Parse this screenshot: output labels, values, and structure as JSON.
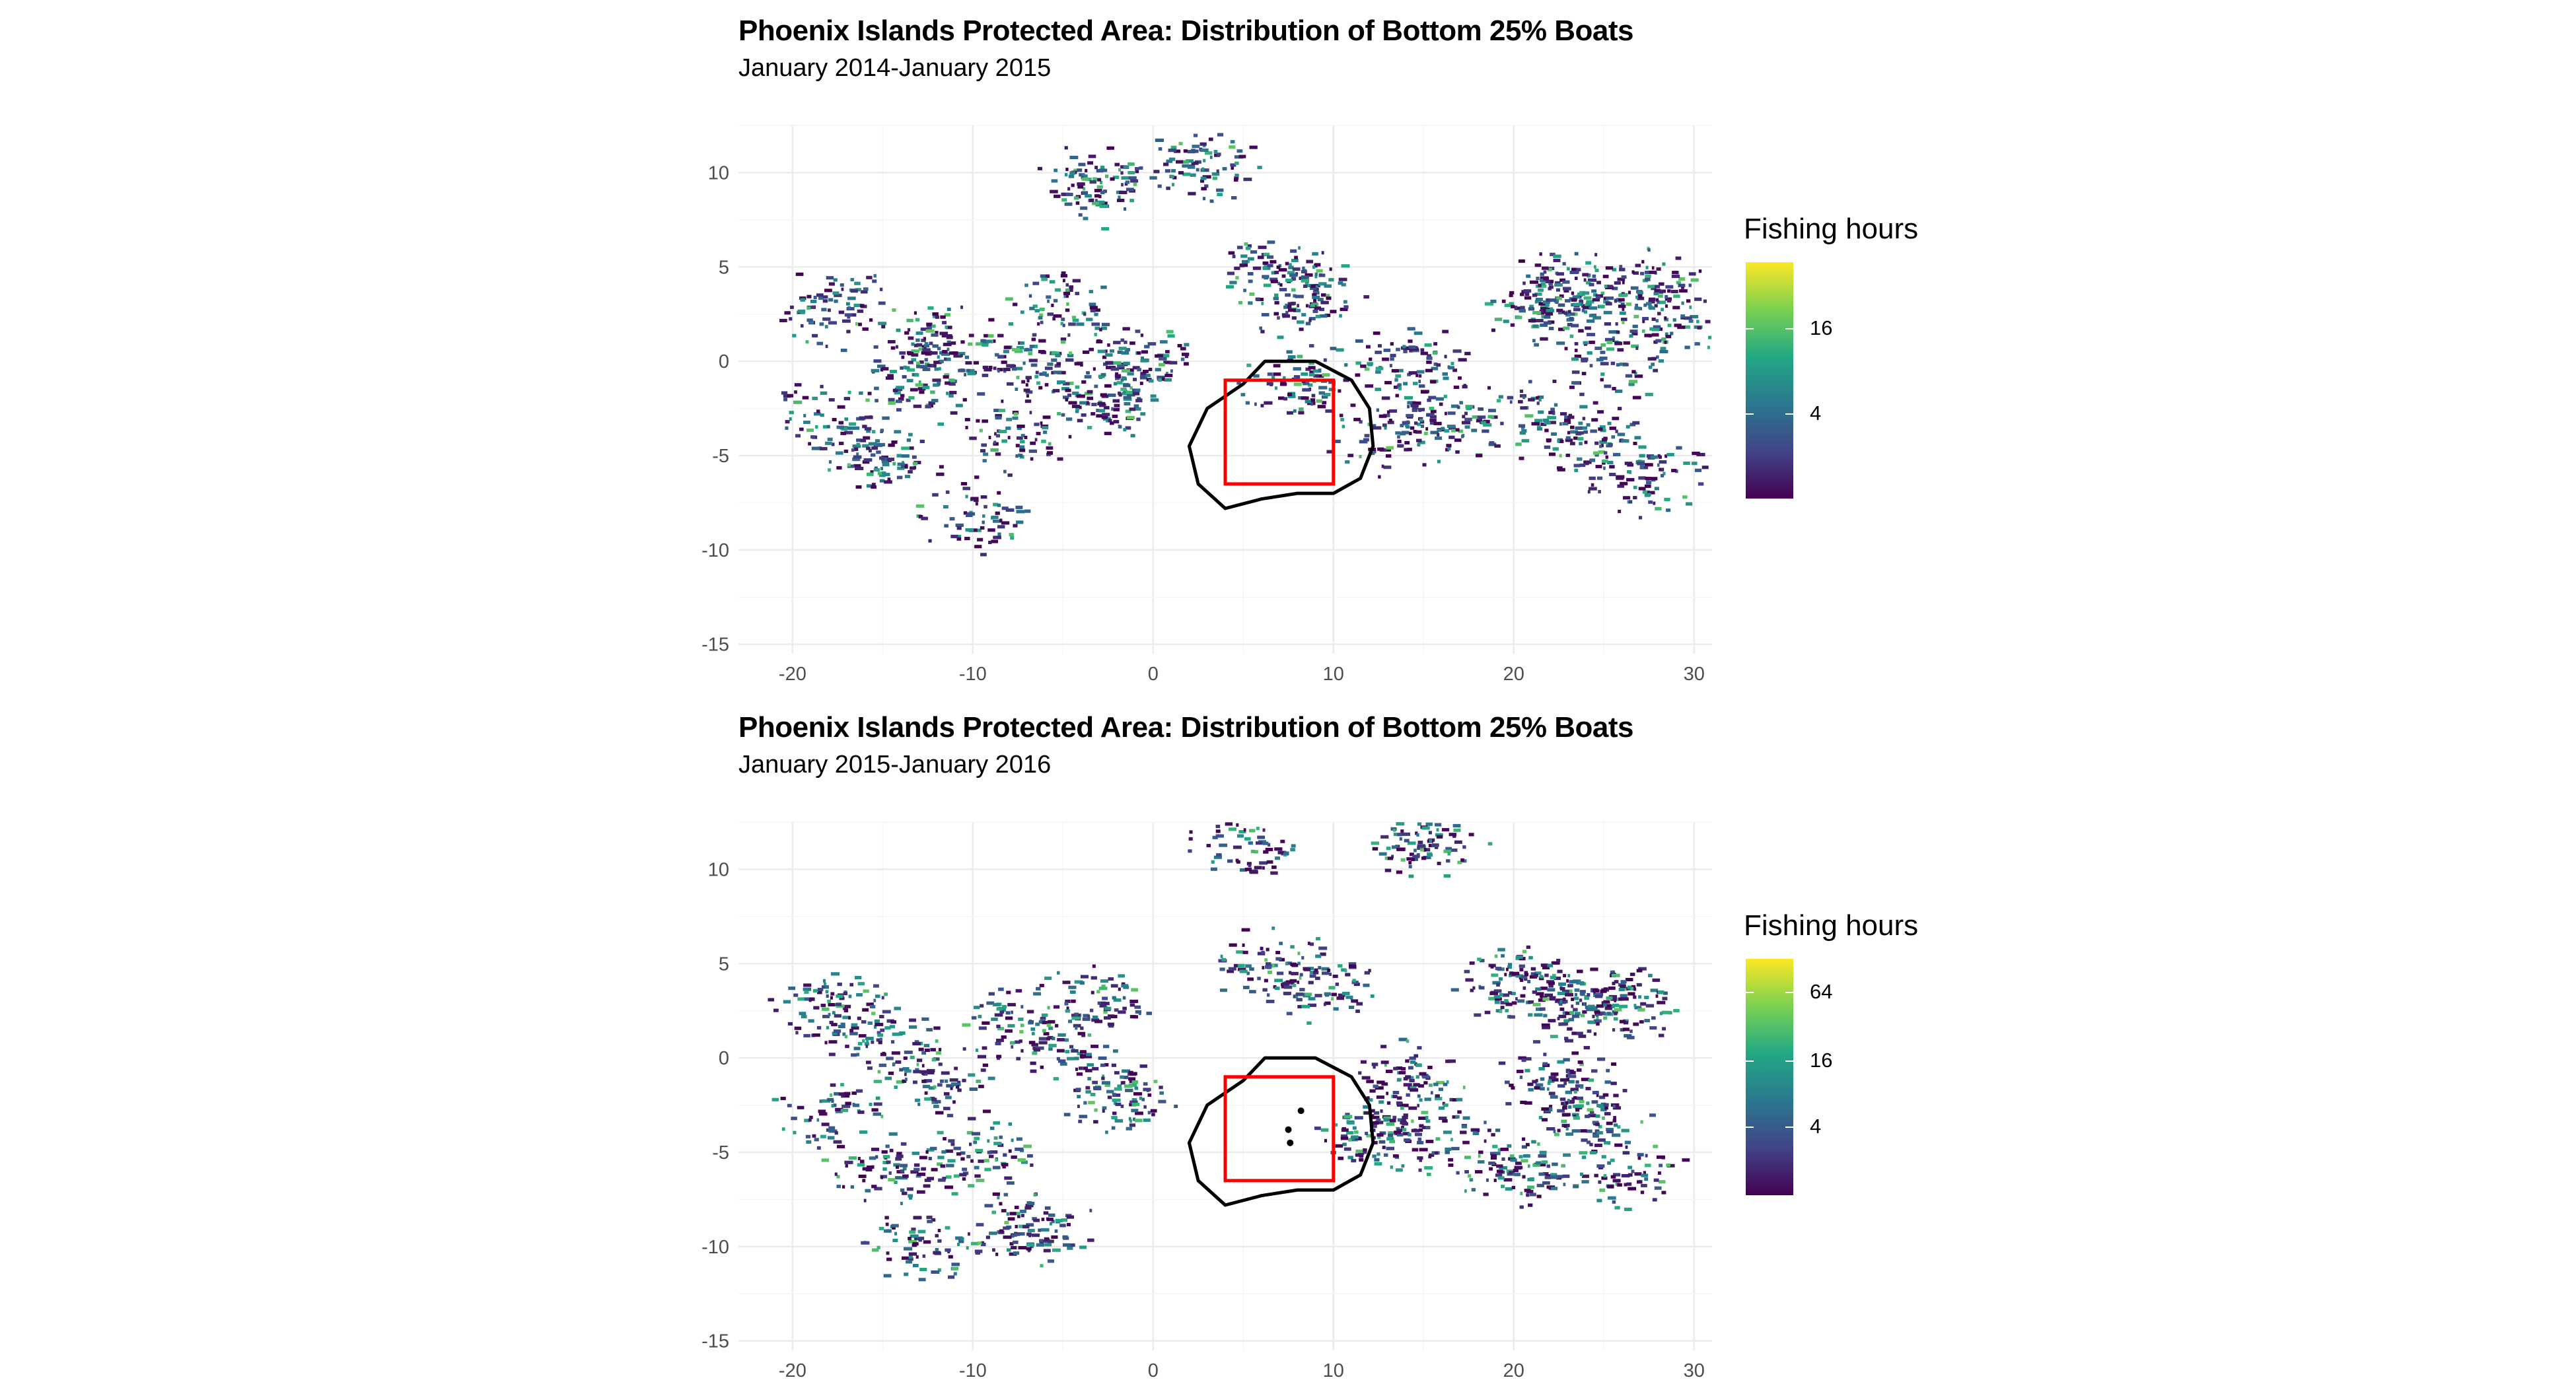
{
  "chart_data": [
    {
      "type": "heatmap",
      "title": "Phoenix Islands Protected Area: Distribution of Bottom 25% Boats",
      "subtitle": "January 2014-January 2015",
      "xlim": [
        -23,
        31
      ],
      "ylim": [
        -15.5,
        12.5
      ],
      "x_ticks": [
        -20,
        -10,
        0,
        10,
        20,
        30
      ],
      "y_ticks": [
        10,
        5,
        0,
        -5,
        -10,
        -15
      ],
      "grid": true,
      "legend": {
        "title": "Fishing hours",
        "placement": "right",
        "ticks": [
          "16",
          "4"
        ],
        "tick_fractions": [
          0.72,
          0.36
        ],
        "colors": [
          "#440154",
          "#414487",
          "#2a788e",
          "#22a884",
          "#7ad151",
          "#fde725"
        ]
      },
      "boundary_outline": [
        [
          7,
          0
        ],
        [
          9,
          0
        ],
        [
          11,
          -1
        ],
        [
          12,
          -2.5
        ],
        [
          12.2,
          -4.5
        ],
        [
          11.5,
          -6.2
        ],
        [
          10,
          -7
        ],
        [
          8,
          -7
        ],
        [
          6,
          -7.3
        ],
        [
          4,
          -7.8
        ],
        [
          2.5,
          -6.5
        ],
        [
          2,
          -4.5
        ],
        [
          3,
          -2.5
        ],
        [
          5,
          -1.2
        ],
        [
          6.2,
          0
        ]
      ],
      "boundary_color": "#000000",
      "inner_box": [
        [
          4,
          -1
        ],
        [
          10,
          -1
        ],
        [
          10,
          -6.5
        ],
        [
          4,
          -6.5
        ]
      ],
      "inner_box_color": "#ff0000",
      "island_points": [],
      "series": [
        {
          "cluster_centers": [
            [
              -18,
              -3
            ],
            [
              -13,
              -1
            ],
            [
              -12,
              1
            ],
            [
              -7,
              0
            ],
            [
              -5,
              3
            ],
            [
              -3,
              -2
            ],
            [
              -8,
              -4
            ],
            [
              -1,
              0
            ],
            [
              -15,
              -5
            ],
            [
              -10,
              -8
            ],
            [
              -18,
              3
            ],
            [
              3,
              10.5
            ],
            [
              -3,
              9.5
            ],
            [
              6,
              5
            ],
            [
              8,
              3.5
            ],
            [
              14,
              0
            ],
            [
              13,
              -4
            ],
            [
              8,
              -1
            ],
            [
              16,
              -3
            ],
            [
              20,
              -3
            ],
            [
              22,
              3
            ],
            [
              24,
              -4
            ],
            [
              25,
              0
            ],
            [
              27,
              -6
            ],
            [
              27,
              4
            ],
            [
              23,
              4
            ],
            [
              28,
              2
            ]
          ]
        }
      ]
    },
    {
      "type": "heatmap",
      "title": "Phoenix Islands Protected Area: Distribution of Bottom 25% Boats",
      "subtitle": "January 2015-January 2016",
      "xlim": [
        -23,
        31
      ],
      "ylim": [
        -15.5,
        12.5
      ],
      "x_ticks": [
        -20,
        -10,
        0,
        10,
        20,
        30
      ],
      "y_ticks": [
        10,
        5,
        0,
        -5,
        -10,
        -15
      ],
      "grid": true,
      "legend": {
        "title": "Fishing hours",
        "placement": "right",
        "ticks": [
          "64",
          "16",
          "4"
        ],
        "tick_fractions": [
          0.86,
          0.57,
          0.29
        ],
        "colors": [
          "#440154",
          "#414487",
          "#2a788e",
          "#22a884",
          "#7ad151",
          "#fde725"
        ]
      },
      "boundary_outline": [
        [
          7,
          0
        ],
        [
          9,
          0
        ],
        [
          11,
          -1
        ],
        [
          12,
          -2.5
        ],
        [
          12.2,
          -4.5
        ],
        [
          11.5,
          -6.2
        ],
        [
          10,
          -7
        ],
        [
          8,
          -7
        ],
        [
          6,
          -7.3
        ],
        [
          4,
          -7.8
        ],
        [
          2.5,
          -6.5
        ],
        [
          2,
          -4.5
        ],
        [
          3,
          -2.5
        ],
        [
          5,
          -1.2
        ],
        [
          6.2,
          0
        ]
      ],
      "boundary_color": "#000000",
      "inner_box": [
        [
          4,
          -1
        ],
        [
          10,
          -1
        ],
        [
          10,
          -6.5
        ],
        [
          4,
          -6.5
        ]
      ],
      "inner_box_color": "#ff0000",
      "island_points": [
        [
          8.2,
          -2.8
        ],
        [
          7.5,
          -3.8
        ],
        [
          7.6,
          -4.5
        ]
      ],
      "series": [
        {
          "cluster_centers": [
            [
              -18,
              3
            ],
            [
              -15,
              1
            ],
            [
              -12,
              -1
            ],
            [
              -8,
              2
            ],
            [
              -5,
              1
            ],
            [
              -2,
              -2
            ],
            [
              -3,
              3
            ],
            [
              -10,
              -5
            ],
            [
              -15,
              -6
            ],
            [
              -13,
              -10
            ],
            [
              -18,
              -3
            ],
            [
              -7,
              -9
            ],
            [
              6,
              5
            ],
            [
              9,
              4
            ],
            [
              5,
              11.5
            ],
            [
              15,
              11.5
            ],
            [
              14,
              -1
            ],
            [
              12,
              -4
            ],
            [
              16,
              -4
            ],
            [
              20,
              4
            ],
            [
              23,
              3
            ],
            [
              24,
              -3
            ],
            [
              22,
              -1
            ],
            [
              26,
              -6
            ],
            [
              20,
              -6
            ],
            [
              26,
              3
            ]
          ]
        }
      ]
    }
  ]
}
